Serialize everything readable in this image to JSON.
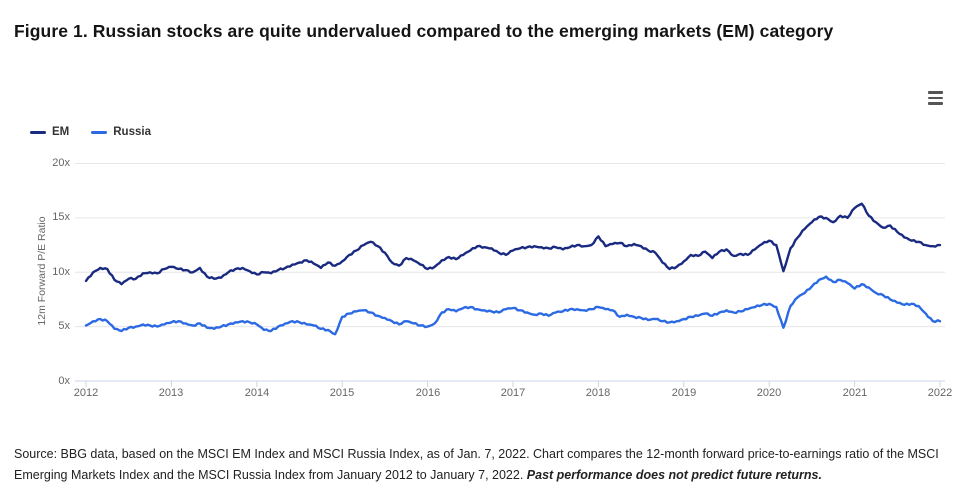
{
  "title": "Figure 1. Russian stocks are quite undervalued compared to the emerging markets (EM) category",
  "chart": {
    "legend": {
      "items": [
        {
          "label": "EM",
          "color": "#1a2a80"
        },
        {
          "label": "Russia",
          "color": "#2b6ae3"
        }
      ]
    },
    "y_axis": {
      "title": "12m Forward P/E Ratio",
      "tick_labels": [
        "20x",
        "15x",
        "10x",
        "5x",
        "0x"
      ]
    },
    "x_axis": {
      "tick_labels": [
        "2012",
        "2013",
        "2014",
        "2015",
        "2016",
        "2017",
        "2018",
        "2019",
        "2020",
        "2021",
        "2022"
      ]
    }
  },
  "footer": {
    "source_text": "Source: BBG data, based on the MSCI EM Index and MSCI Russia Index, as of Jan. 7, 2022. Chart compares the 12-month forward price-to-earnings ratio of the MSCI Emerging Markets Index and the MSCI Russia Index from January 2012 to January 7, 2022. ",
    "disclaimer": "Past performance does not predict future returns."
  },
  "colors": {
    "em": "#1a2a80",
    "russia": "#2b6ae3",
    "grid": "#e6e6e6",
    "axis_line": "#ccd6eb",
    "tick_text": "#666666"
  },
  "chart_data": {
    "type": "line",
    "title": "Figure 1. Russian stocks are quite undervalued compared to the emerging markets (EM) category",
    "xlabel": "",
    "ylabel": "12m Forward P/E Ratio",
    "x_unit": "monthly, January 2012 to January 2022",
    "x_range": [
      2012.0,
      2022.0
    ],
    "x_tick_labels": [
      "2012",
      "2013",
      "2014",
      "2015",
      "2016",
      "2017",
      "2018",
      "2019",
      "2020",
      "2021",
      "2022"
    ],
    "ylim": [
      0,
      20
    ],
    "y_tick_format": "{value}x",
    "grid": "horizontal",
    "legend_position": "top-left",
    "series": [
      {
        "name": "EM",
        "color": "#1a2a80",
        "values": [
          9.2,
          10.0,
          10.4,
          10.3,
          9.3,
          8.9,
          9.4,
          9.4,
          9.9,
          10.0,
          9.9,
          10.3,
          10.5,
          10.3,
          10.2,
          10.0,
          10.4,
          9.6,
          9.4,
          9.5,
          10.0,
          10.3,
          10.4,
          10.1,
          9.8,
          10.0,
          9.9,
          10.2,
          10.4,
          10.7,
          10.9,
          11.1,
          10.8,
          10.4,
          10.9,
          10.6,
          11.0,
          11.6,
          12.0,
          12.5,
          12.8,
          12.4,
          11.8,
          10.9,
          10.6,
          11.3,
          11.1,
          10.7,
          10.3,
          10.5,
          11.1,
          11.4,
          11.2,
          11.6,
          12.0,
          12.4,
          12.3,
          12.2,
          11.8,
          11.6,
          12.0,
          12.2,
          12.3,
          12.4,
          12.3,
          12.2,
          12.3,
          12.1,
          12.3,
          12.5,
          12.4,
          12.5,
          13.3,
          12.4,
          12.6,
          12.7,
          12.4,
          12.6,
          12.4,
          12.0,
          11.8,
          10.9,
          10.3,
          10.5,
          11.0,
          11.6,
          11.5,
          11.9,
          11.3,
          11.9,
          12.1,
          11.5,
          11.7,
          11.6,
          12.1,
          12.6,
          12.9,
          12.5,
          10.1,
          12.2,
          13.2,
          14.0,
          14.6,
          15.1,
          15.0,
          14.6,
          15.2,
          15.0,
          15.9,
          16.3,
          15.2,
          14.6,
          14.1,
          14.3,
          13.7,
          13.2,
          12.9,
          12.8,
          12.5,
          12.4,
          12.5
        ]
      },
      {
        "name": "Russia",
        "color": "#2b6ae3",
        "values": [
          5.1,
          5.5,
          5.7,
          5.5,
          4.8,
          4.6,
          4.9,
          5.0,
          5.2,
          5.1,
          5.0,
          5.2,
          5.4,
          5.5,
          5.3,
          5.1,
          5.3,
          4.9,
          4.8,
          5.0,
          5.2,
          5.4,
          5.5,
          5.4,
          5.2,
          4.7,
          4.6,
          5.0,
          5.3,
          5.5,
          5.4,
          5.2,
          5.1,
          4.8,
          4.7,
          4.3,
          5.9,
          6.2,
          6.4,
          6.5,
          6.3,
          6.0,
          5.8,
          5.5,
          5.2,
          5.5,
          5.3,
          5.1,
          5.0,
          5.3,
          6.3,
          6.6,
          6.4,
          6.7,
          6.8,
          6.6,
          6.5,
          6.4,
          6.3,
          6.6,
          6.7,
          6.5,
          6.3,
          6.1,
          6.2,
          6.0,
          6.3,
          6.4,
          6.6,
          6.6,
          6.5,
          6.6,
          6.8,
          6.6,
          6.5,
          5.9,
          6.1,
          5.9,
          5.8,
          5.6,
          5.7,
          5.5,
          5.4,
          5.5,
          5.7,
          5.9,
          6.0,
          6.2,
          6.0,
          6.3,
          6.5,
          6.3,
          6.4,
          6.6,
          6.8,
          7.0,
          7.1,
          6.8,
          4.9,
          6.9,
          7.7,
          8.1,
          8.7,
          9.3,
          9.6,
          9.1,
          9.3,
          9.0,
          8.5,
          8.9,
          8.6,
          8.1,
          7.9,
          7.5,
          7.2,
          7.0,
          7.1,
          6.9,
          6.2,
          5.5,
          5.5
        ]
      }
    ]
  }
}
